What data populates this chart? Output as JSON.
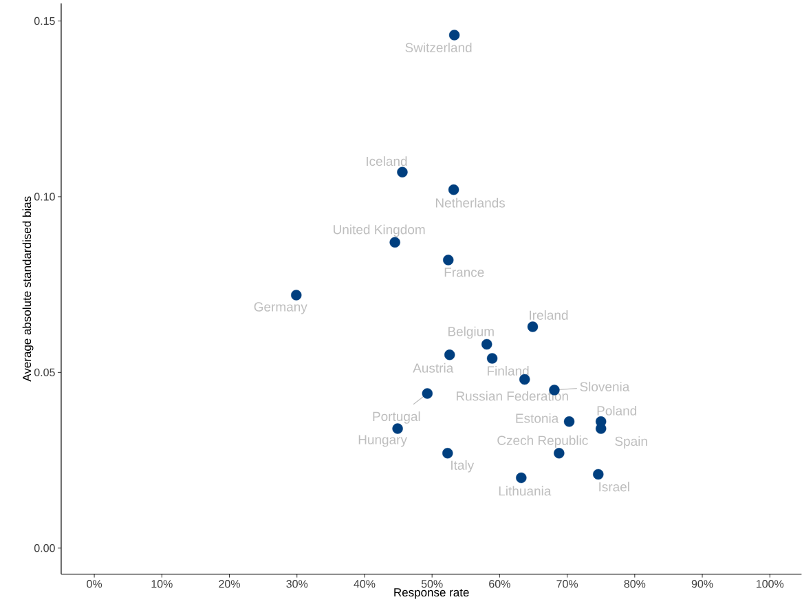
{
  "chart_data": {
    "type": "scatter",
    "xlabel": "Response rate",
    "ylabel": "Average absolute standardised bias",
    "color": "#003f7f",
    "marker": "circle",
    "grid": false,
    "x": [
      53.3,
      45.6,
      53.2,
      44.5,
      52.4,
      29.9,
      64.9,
      58.1,
      58.9,
      52.6,
      63.7,
      68.1,
      49.3,
      70.3,
      75.0,
      75.0,
      44.9,
      52.3,
      68.8,
      74.6,
      63.2
    ],
    "values": [
      0.146,
      0.107,
      0.102,
      0.087,
      0.082,
      0.072,
      0.063,
      0.058,
      0.054,
      0.055,
      0.048,
      0.045,
      0.044,
      0.036,
      0.036,
      0.034,
      0.034,
      0.027,
      0.027,
      0.021,
      0.02
    ],
    "annotations": [
      {
        "text": "Switzerland",
        "x": 53.3,
        "y": 0.146
      },
      {
        "text": "Iceland",
        "x": 45.6,
        "y": 0.107
      },
      {
        "text": "Netherlands",
        "x": 53.2,
        "y": 0.102
      },
      {
        "text": "United Kingdom",
        "x": 44.5,
        "y": 0.087
      },
      {
        "text": "France",
        "x": 52.4,
        "y": 0.082
      },
      {
        "text": "Germany",
        "x": 29.9,
        "y": 0.072
      },
      {
        "text": "Ireland",
        "x": 64.9,
        "y": 0.063
      },
      {
        "text": "Belgium",
        "x": 58.1,
        "y": 0.058
      },
      {
        "text": "Finland",
        "x": 58.9,
        "y": 0.054
      },
      {
        "text": "Austria",
        "x": 52.6,
        "y": 0.055
      },
      {
        "text": "Russian Federation",
        "x": 63.7,
        "y": 0.048
      },
      {
        "text": "Slovenia",
        "x": 68.1,
        "y": 0.045
      },
      {
        "text": "Portugal",
        "x": 49.3,
        "y": 0.044
      },
      {
        "text": "Estonia",
        "x": 70.3,
        "y": 0.036
      },
      {
        "text": "Poland",
        "x": 75.0,
        "y": 0.036
      },
      {
        "text": "Spain",
        "x": 75.0,
        "y": 0.034
      },
      {
        "text": "Hungary",
        "x": 44.9,
        "y": 0.034
      },
      {
        "text": "Italy",
        "x": 52.3,
        "y": 0.027
      },
      {
        "text": "Czech Republic",
        "x": 68.8,
        "y": 0.027
      },
      {
        "text": "Israel",
        "x": 74.6,
        "y": 0.021
      },
      {
        "text": "Lithuania",
        "x": 63.2,
        "y": 0.02
      }
    ],
    "xlim": [
      -4.9,
      104.7
    ],
    "ylim": [
      -0.0074,
      0.155
    ],
    "xticks": [
      {
        "value": 0,
        "label": "0%"
      },
      {
        "value": 10,
        "label": "10%"
      },
      {
        "value": 20,
        "label": "20%"
      },
      {
        "value": 30,
        "label": "30%"
      },
      {
        "value": 40,
        "label": "40%"
      },
      {
        "value": 50,
        "label": "50%"
      },
      {
        "value": 60,
        "label": "60%"
      },
      {
        "value": 70,
        "label": "70%"
      },
      {
        "value": 80,
        "label": "80%"
      },
      {
        "value": 90,
        "label": "90%"
      },
      {
        "value": 100,
        "label": "100%"
      }
    ],
    "yticks": [
      {
        "value": 0,
        "label": "0.00"
      },
      {
        "value": 0.05,
        "label": "0.05"
      },
      {
        "value": 0.1,
        "label": "0.10"
      },
      {
        "value": 0.15,
        "label": "0.15"
      }
    ]
  }
}
